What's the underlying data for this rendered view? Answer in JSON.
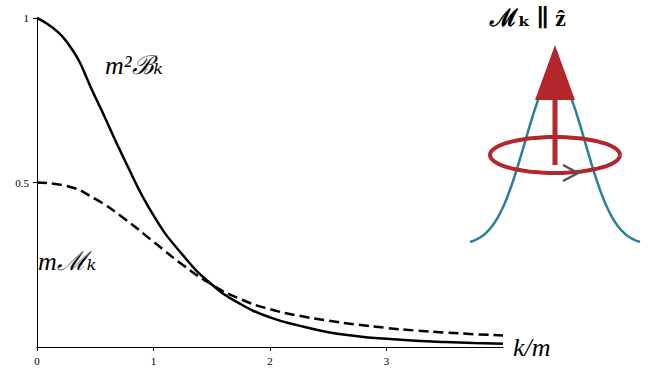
{
  "chart_data": {
    "type": "line",
    "x": [
      0,
      0.25,
      0.5,
      0.75,
      1,
      1.25,
      1.5,
      1.75,
      2,
      2.25,
      2.5,
      2.75,
      3,
      3.25,
      3.5,
      3.75,
      4
    ],
    "series": [
      {
        "name": "m²ℬₖ",
        "color": "#000000",
        "line_style": "solid",
        "values": [
          1,
          0.93,
          0.76,
          0.57,
          0.4,
          0.28,
          0.19,
          0.13,
          0.09,
          0.065,
          0.045,
          0.033,
          0.025,
          0.019,
          0.015,
          0.012,
          0.01
        ]
      },
      {
        "name": "mℳₖ",
        "color": "#000000",
        "line_style": "dashed",
        "values": [
          0.5,
          0.49,
          0.45,
          0.39,
          0.32,
          0.25,
          0.19,
          0.145,
          0.115,
          0.095,
          0.08,
          0.068,
          0.058,
          0.05,
          0.044,
          0.039,
          0.035
        ]
      }
    ],
    "xlabel": "k/m",
    "xlim": [
      0,
      4
    ],
    "xticks": [
      0,
      1,
      2,
      3
    ],
    "ylim": [
      0,
      1
    ],
    "yticks": [
      0.5,
      1
    ],
    "grid": false,
    "annotations": [
      "ℳₖ ∥ ẑ"
    ]
  }
}
